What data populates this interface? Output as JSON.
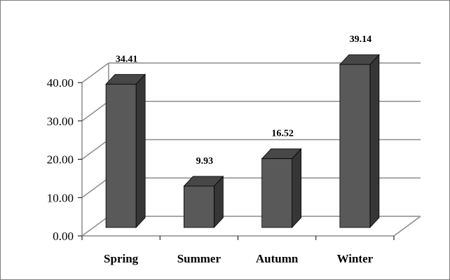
{
  "chart_data": {
    "type": "bar",
    "categories": [
      "Spring",
      "Summer",
      "Autumn",
      "Winter"
    ],
    "values": [
      34.41,
      9.93,
      16.52,
      39.14
    ],
    "value_labels": [
      "34.41",
      "9.93",
      "16.52",
      "39.14"
    ],
    "y_ticks": [
      "0.00",
      "10.00",
      "20.00",
      "30.00",
      "40.00"
    ],
    "ylim": [
      0,
      40
    ],
    "title": "",
    "xlabel": "",
    "ylabel": "",
    "grid": true,
    "three_d": true,
    "legend": "none",
    "colors": {
      "bar_front": "#595959",
      "bar_top": "#474747",
      "bar_side": "#363636",
      "bar_edge": "#000000",
      "gridline": "#8c8c8c"
    }
  }
}
